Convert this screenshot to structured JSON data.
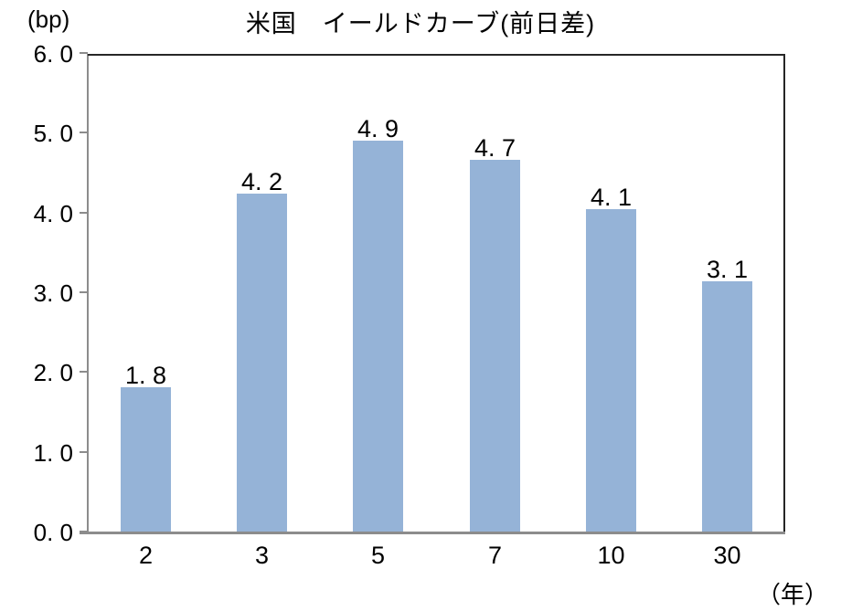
{
  "header": {
    "title": "米国　イールドカーブ(前日差)",
    "y_unit_label": "(bp)",
    "x_unit_label": "（年）"
  },
  "chart_data": {
    "type": "bar",
    "title": "米国　イールドカーブ(前日差)",
    "ylabel": "(bp)",
    "xlabel": "（年）",
    "categories": [
      "2",
      "3",
      "5",
      "7",
      "10",
      "30"
    ],
    "values": [
      1.8,
      4.2,
      4.9,
      4.7,
      4.1,
      3.1
    ],
    "value_labels": [
      "1. 8",
      "4. 2",
      "4. 9",
      "4. 7",
      "4. 1",
      "3. 1"
    ],
    "render_values": [
      1.82,
      4.25,
      4.91,
      4.67,
      4.05,
      3.15
    ],
    "ylim": [
      0,
      6
    ],
    "ytick_step": 1,
    "ytick_labels": [
      "0. 0",
      "1. 0",
      "2. 0",
      "3. 0",
      "4. 0",
      "5. 0",
      "6. 0"
    ],
    "grid": false,
    "legend": "none",
    "colors": {
      "bar": "#95B3D7",
      "axis": "#8C8C8C",
      "plot_border": "#262626",
      "text": "#000000",
      "background": "#FFFFFF"
    }
  }
}
